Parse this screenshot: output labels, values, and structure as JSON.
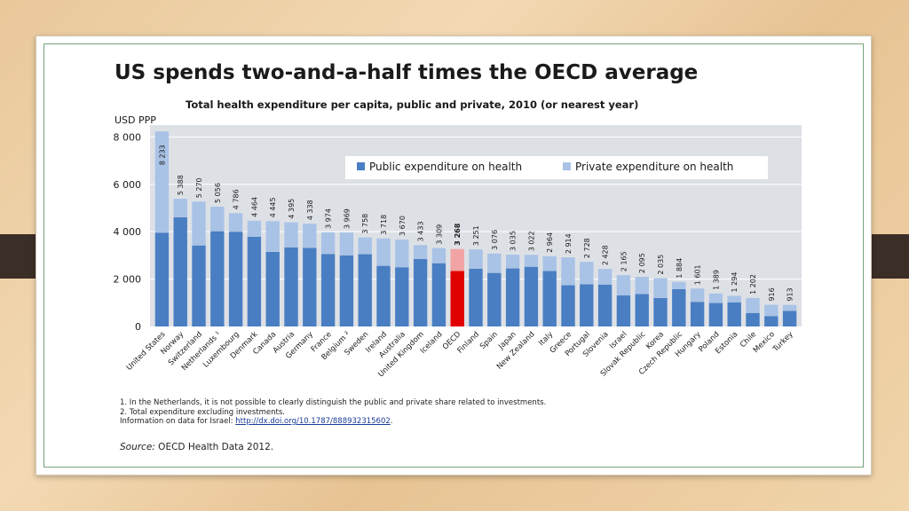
{
  "slide": {
    "title": "US spends two-and-a-half times the OECD average",
    "subtitle": "Total health expenditure per capita, public and private, 2010 (or nearest year)",
    "y_unit": "USD PPP",
    "notes": [
      "1.  In the Netherlands, it is not possible to clearly distinguish the public and private share related to investments.",
      "2.  Total expenditure excluding investments."
    ],
    "israel_note_prefix": "Information on data for Israel: ",
    "israel_link": "http://dx.doi.org/10.1787/888932315602",
    "israel_note_suffix": ".",
    "source_label": "Source:",
    "source_text": " OECD Health Data 2012."
  },
  "chart_data": {
    "type": "bar",
    "stacked": true,
    "title": "Total health expenditure per capita, public and private, 2010 (or nearest year)",
    "ylabel": "USD PPP",
    "ylim": [
      0,
      8500
    ],
    "yticks": [
      0,
      2000,
      4000,
      6000,
      8000
    ],
    "ytick_labels": [
      "0",
      "2 000",
      "4 000",
      "6 000",
      "8 000"
    ],
    "grid": true,
    "legend_position": "top-right",
    "highlight_category": "OECD",
    "categories": [
      "United States",
      "Norway",
      "Switzerland",
      "Netherlands ¹",
      "Luxembourg",
      "Denmark",
      "Canada",
      "Austria",
      "Germany",
      "France",
      "Belgium ²",
      "Sweden",
      "Ireland",
      "Australia",
      "United Kingdom",
      "Iceland",
      "OECD",
      "Finland",
      "Spain",
      "Japan",
      "New Zealand",
      "Italy",
      "Greece",
      "Portugal",
      "Slovenia",
      "Israel",
      "Slovak Republic",
      "Korea",
      "Czech Republic",
      "Hungary",
      "Poland",
      "Estonia",
      "Chile",
      "Mexico",
      "Turkey"
    ],
    "totals": [
      8233,
      5388,
      5270,
      5056,
      4786,
      4464,
      4445,
      4395,
      4338,
      3974,
      3969,
      3758,
      3718,
      3670,
      3433,
      3309,
      3268,
      3251,
      3076,
      3035,
      3022,
      2964,
      2914,
      2728,
      2428,
      2165,
      2095,
      2035,
      1884,
      1601,
      1389,
      1294,
      1202,
      916,
      913
    ],
    "total_labels": [
      "8 233",
      "5 388",
      "5 270",
      "5 056",
      "4 786",
      "4 464",
      "4 445",
      "4 395",
      "4 338",
      "3 974",
      "3 969",
      "3 758",
      "3 718",
      "3 670",
      "3 433",
      "3 309",
      "3 268",
      "3 251",
      "3 076",
      "3 035",
      "3 022",
      "2 964",
      "2 914",
      "2 728",
      "2 428",
      "2 165",
      "2 095",
      "2 035",
      "1 884",
      "1 601",
      "1 389",
      "1 294",
      "1 202",
      "916",
      "913"
    ],
    "series": [
      {
        "name": "Public expenditure on health",
        "color": "#4a7ec2",
        "highlight_color": "#e00000",
        "values": [
          3960,
          4610,
          3420,
          4020,
          4000,
          3790,
          3150,
          3340,
          3320,
          3060,
          3000,
          3050,
          2560,
          2500,
          2850,
          2670,
          2340,
          2440,
          2260,
          2450,
          2520,
          2340,
          1740,
          1780,
          1770,
          1310,
          1370,
          1200,
          1580,
          1040,
          990,
          1020,
          570,
          440,
          660
        ]
      },
      {
        "name": "Private expenditure on health",
        "color": "#a9c3e6",
        "highlight_color": "#f2a3a3",
        "values": [
          4273,
          778,
          1850,
          1036,
          786,
          674,
          1295,
          1055,
          1018,
          914,
          969,
          708,
          1158,
          1170,
          583,
          639,
          928,
          811,
          816,
          585,
          502,
          624,
          1174,
          948,
          658,
          855,
          725,
          835,
          304,
          561,
          399,
          274,
          632,
          476,
          253
        ]
      }
    ]
  }
}
